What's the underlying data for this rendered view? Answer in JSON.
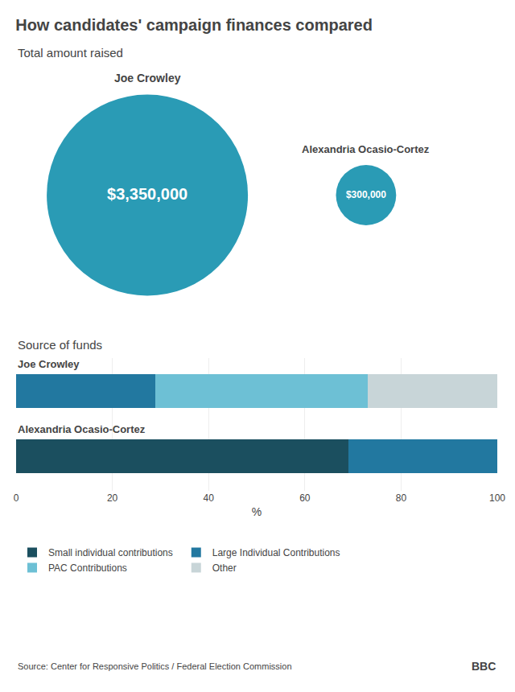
{
  "title": "How candidates' campaign finances compared",
  "annotations": [
    "Source: Center for Responsive Politics / Federal Election Commission",
    "BBC"
  ],
  "chart_data": [
    {
      "type": "bubble",
      "subtitle": "Total amount raised",
      "categories": [
        "Joe Crowley",
        "Alexandria Ocasio-Cortez"
      ],
      "values": [
        3350000,
        300000
      ],
      "value_labels": [
        "$3,350,000",
        "$300,000"
      ],
      "color": "#2A9BB5",
      "data_labels": true,
      "tick_labels": false
    },
    {
      "type": "bar",
      "subtitle": "Source of funds",
      "orientation": "horizontal",
      "stacked": true,
      "categories": [
        "Joe Crowley",
        "Alexandria Ocasio-Cortez"
      ],
      "series": [
        {
          "name": "Small individual contributions",
          "color": "#1B4F5F",
          "values": [
            null,
            69
          ]
        },
        {
          "name": "Large Individual Contributions",
          "color": "#2278A0",
          "values": [
            29,
            29
          ]
        },
        {
          "name": "PAC Contributions",
          "color": "#6DC0D5",
          "values": [
            44,
            null
          ]
        },
        {
          "name": "Other",
          "color": "#C8D5D8",
          "values": [
            27,
            null
          ]
        },
        {
          "name": "Large Individual Contributions",
          "color": "#2278A0",
          "values": [
            null,
            2
          ]
        }
      ],
      "xlim": [
        0,
        100
      ],
      "xticks": [
        0,
        20,
        40,
        60,
        80,
        100
      ],
      "xlabel": "%",
      "grid": true,
      "legend": "bottom",
      "tick_labels": "x"
    }
  ]
}
